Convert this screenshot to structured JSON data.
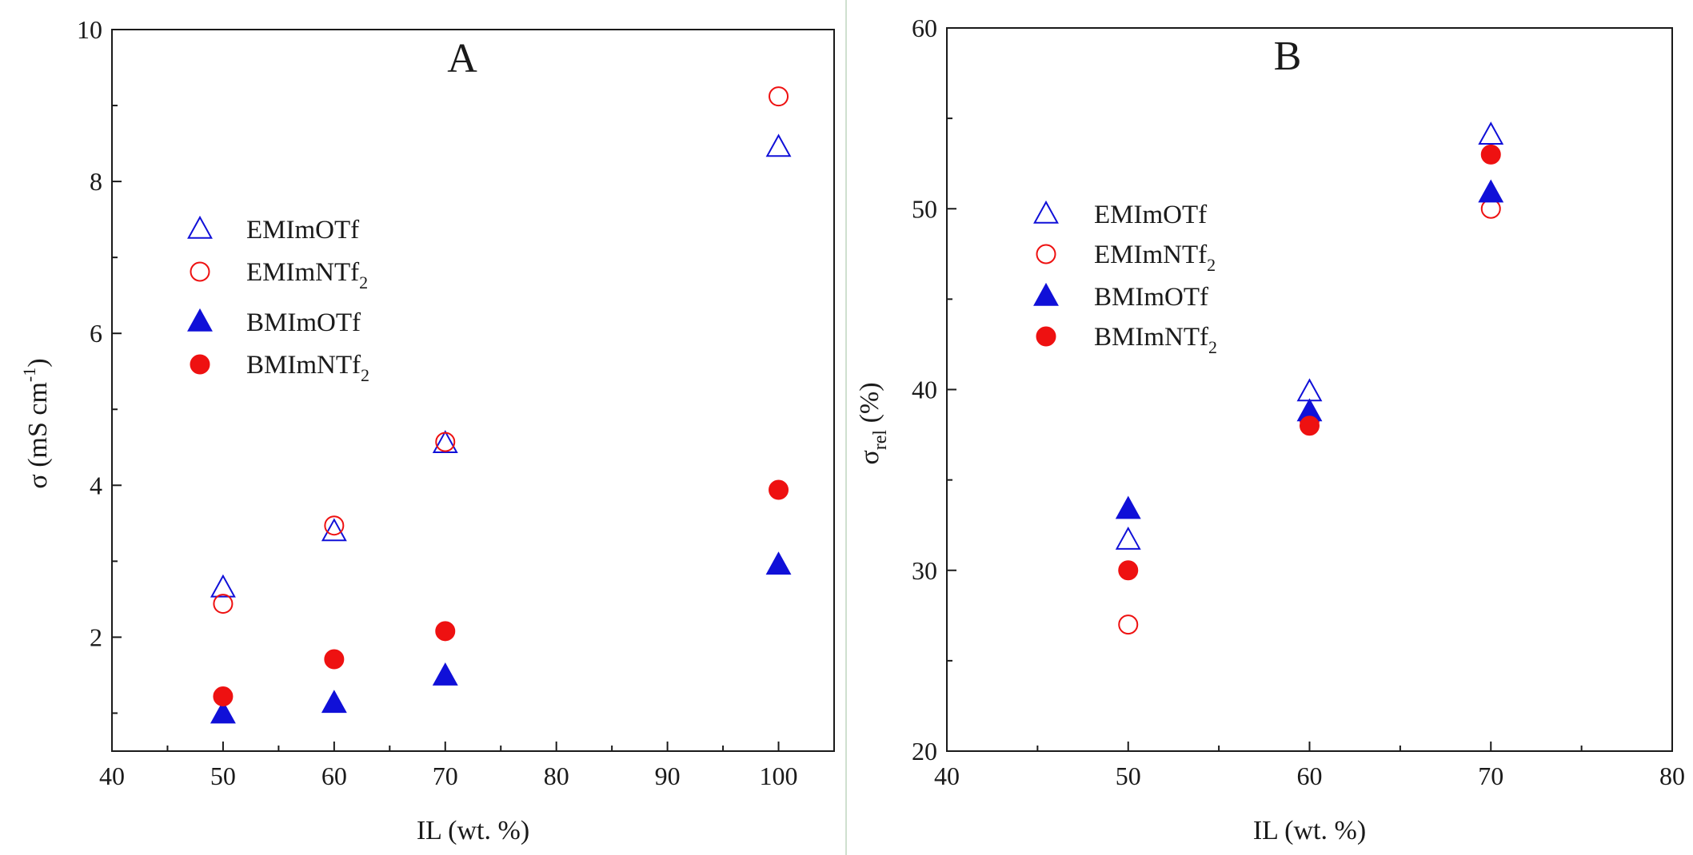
{
  "colors": {
    "blue": "#1010d8",
    "red": "#ee1111",
    "axis": "#1a1a1a"
  },
  "chart_data": [
    {
      "type": "scatter",
      "panel": "A",
      "xlabel": "IL (wt. %)",
      "ylabel": "σ (mS cm",
      "ylabel_sup": "-1",
      "ylabel_end": ")",
      "xlim": [
        40,
        105
      ],
      "ylim": [
        0.5,
        10
      ],
      "xticks": [
        40,
        50,
        60,
        70,
        80,
        90,
        100
      ],
      "yticks": [
        2,
        4,
        6,
        8,
        10
      ],
      "legend_position": "upper-left",
      "series": [
        {
          "name": "EMImOTf",
          "sub": "",
          "marker": "triangle",
          "filled": false,
          "color": "#1010d8",
          "x": [
            50,
            60,
            70,
            100
          ],
          "y": [
            2.68,
            3.42,
            4.58,
            8.48
          ]
        },
        {
          "name": "EMImNTf",
          "sub": "2",
          "marker": "circle",
          "filled": false,
          "color": "#ee1111",
          "x": [
            50,
            60,
            70,
            100
          ],
          "y": [
            2.44,
            3.47,
            4.57,
            9.12
          ]
        },
        {
          "name": "BMImOTf",
          "sub": "",
          "marker": "triangle",
          "filled": true,
          "color": "#1010d8",
          "x": [
            50,
            60,
            70,
            100
          ],
          "y": [
            1.02,
            1.16,
            1.52,
            2.98
          ]
        },
        {
          "name": "BMImNTf",
          "sub": "2",
          "marker": "circle",
          "filled": true,
          "color": "#ee1111",
          "x": [
            50,
            60,
            70,
            100
          ],
          "y": [
            1.22,
            1.71,
            2.08,
            3.94
          ]
        }
      ]
    },
    {
      "type": "scatter",
      "panel": "B",
      "xlabel": "IL (wt. %)",
      "ylabel": "σ",
      "ylabel_sub": "rel",
      "ylabel_end": " (%)",
      "xlim": [
        40,
        80
      ],
      "ylim": [
        20,
        60
      ],
      "xticks": [
        40,
        50,
        60,
        70,
        80
      ],
      "yticks": [
        20,
        30,
        40,
        50,
        60
      ],
      "legend_position": "upper-left",
      "series": [
        {
          "name": "EMImOTf",
          "sub": "",
          "marker": "triangle",
          "filled": false,
          "color": "#1010d8",
          "x": [
            50,
            60,
            70
          ],
          "y": [
            31.8,
            40.0,
            54.2
          ]
        },
        {
          "name": "EMImNTf",
          "sub": "2",
          "marker": "circle",
          "filled": false,
          "color": "#ee1111",
          "x": [
            50,
            60,
            70
          ],
          "y": [
            27.0,
            38.3,
            50.0
          ]
        },
        {
          "name": "BMImOTf",
          "sub": "",
          "marker": "triangle",
          "filled": true,
          "color": "#1010d8",
          "x": [
            50,
            60,
            70
          ],
          "y": [
            33.5,
            38.9,
            51.0
          ]
        },
        {
          "name": "BMImNTf",
          "sub": "2",
          "marker": "circle",
          "filled": true,
          "color": "#ee1111",
          "x": [
            50,
            60,
            70
          ],
          "y": [
            30.0,
            38.0,
            53.0
          ]
        }
      ]
    }
  ]
}
